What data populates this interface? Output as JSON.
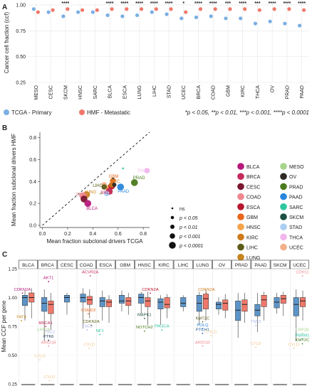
{
  "panels": {
    "a": "A",
    "b": "B",
    "c": "C"
  },
  "colors": {
    "primary": "#7aafe3",
    "metastatic": "#f0786a",
    "grid": "#e6e6e6",
    "axis": "#333333",
    "text": "#222222"
  },
  "chart_data": [
    {
      "type": "scatter",
      "ylabel": "Cancer cell fraction (ccf)",
      "xlabel": "",
      "ylim": [
        0.25,
        1.0
      ],
      "yticks": [
        1.0,
        0.75,
        0.5,
        0.25
      ],
      "ytick_labels": [
        "1.00",
        "0.75",
        "0.50",
        "0.25"
      ],
      "categories": [
        "MESO",
        "CESC",
        "SKCM",
        "HNSC",
        "SARC",
        "BLCA",
        "ESCA",
        "LUNG",
        "LIHC",
        "STAD",
        "UCEC",
        "BRCA",
        "COAD",
        "GBM",
        "KIRC",
        "THCA",
        "OV",
        "PRAD",
        "PAAD"
      ],
      "significance": [
        "",
        "",
        "****",
        "",
        "",
        "****",
        "****",
        "****",
        "****",
        "****",
        "*",
        "****",
        "****",
        "***",
        "****",
        "***",
        "****",
        "****",
        "****"
      ],
      "series": [
        {
          "name": "TCGA - Primary",
          "color": "#7aafe3",
          "values": [
            0.96,
            0.93,
            0.89,
            0.93,
            0.93,
            0.9,
            0.89,
            0.9,
            0.93,
            0.91,
            0.87,
            0.88,
            0.89,
            0.87,
            0.87,
            0.82,
            0.84,
            0.82,
            0.8
          ]
        },
        {
          "name": "HMF - Metastatic",
          "color": "#f0786a",
          "values": [
            0.93,
            0.95,
            0.96,
            0.95,
            0.95,
            0.96,
            0.96,
            0.96,
            0.96,
            0.96,
            0.93,
            0.96,
            0.96,
            0.96,
            0.96,
            0.95,
            0.96,
            0.96,
            0.95
          ]
        }
      ],
      "legend": [
        "TCGA - Primary",
        "HMF - Metastatic"
      ],
      "legend_placement": "bottom",
      "footnote": "*p < 0.05, **p < 0.01, ***p < 0.001, ****p < 0.0001"
    },
    {
      "type": "scatter",
      "xlabel": "Mean fraction subclonal drivers TCGA",
      "ylabel": "Mean fraction subclonal drivers HMF",
      "xlim": [
        -0.02,
        0.85
      ],
      "ylim": [
        -0.02,
        0.85
      ],
      "xticks": [
        0.0,
        0.2,
        0.4,
        0.6,
        0.8
      ],
      "xtick_labels": [
        "0.0",
        "0.2",
        "0.4",
        "0.6",
        "0.8"
      ],
      "yticks": [
        0.0,
        0.2,
        0.4,
        0.6,
        0.8
      ],
      "ytick_labels": [
        "0.0",
        "0.2",
        "0.4",
        "0.6",
        "0.8"
      ],
      "points": [
        {
          "label": "BLCA",
          "x": 0.36,
          "y": 0.2,
          "color": "#b5177a",
          "size": "p < 0.0001",
          "show_label": true
        },
        {
          "label": "BRCA",
          "x": 0.53,
          "y": 0.31,
          "color": "#c42a5a",
          "size": "p < 0.0001",
          "show_label": true
        },
        {
          "label": "CESC",
          "x": 0.33,
          "y": 0.24,
          "color": "#7b1730",
          "size": "p < 0.0001",
          "show_label": false
        },
        {
          "label": "COAD",
          "x": 0.32,
          "y": 0.27,
          "color": "#f0868e",
          "size": "p < 0.0001",
          "show_label": true
        },
        {
          "label": "ESCA",
          "x": 0.55,
          "y": 0.36,
          "color": "#b8162e",
          "size": "p < 0.0001",
          "show_label": false
        },
        {
          "label": "GBM",
          "x": 0.56,
          "y": 0.41,
          "color": "#e8671a",
          "size": "p < 0.001",
          "show_label": true
        },
        {
          "label": "HNSC",
          "x": 0.53,
          "y": 0.34,
          "color": "#f4a34a",
          "size": "p < 0.0001",
          "show_label": false
        },
        {
          "label": "KIRC",
          "x": 0.55,
          "y": 0.37,
          "color": "#cd7a1c",
          "size": "p < 0.001",
          "show_label": true
        },
        {
          "label": "LIHC",
          "x": 0.49,
          "y": 0.35,
          "color": "#5e5c1a",
          "size": "p < 0.001",
          "show_label": true
        },
        {
          "label": "LUNG",
          "x": 0.35,
          "y": 0.28,
          "color": "#c8841e",
          "size": "p < 0.0001",
          "show_label": true
        },
        {
          "label": "MESO",
          "x": 0.46,
          "y": 0.29,
          "color": "#a6d48a",
          "size": "ns",
          "show_label": false
        },
        {
          "label": "OV",
          "x": 0.57,
          "y": 0.37,
          "color": "#2e2a24",
          "size": "p < 0.01",
          "show_label": false
        },
        {
          "label": "PRAD",
          "x": 0.73,
          "y": 0.39,
          "color": "#4a7a1c",
          "size": "p < 0.0001",
          "show_label": true
        },
        {
          "label": "PAAD",
          "x": 0.62,
          "y": 0.35,
          "color": "#2a86dc",
          "size": "p < 0.0001",
          "show_label": true
        },
        {
          "label": "SARC",
          "x": 0.64,
          "y": 0.52,
          "color": "#2ec6a0",
          "size": "ns",
          "show_label": false
        },
        {
          "label": "SKCM",
          "x": 0.56,
          "y": 0.43,
          "color": "#1c5040",
          "size": "ns",
          "show_label": false
        },
        {
          "label": "STAD",
          "x": 0.51,
          "y": 0.29,
          "color": "#aacdf2",
          "size": "p < 0.001",
          "show_label": false
        },
        {
          "label": "THCA",
          "x": 0.83,
          "y": 0.5,
          "color": "#f1b6ec",
          "size": "p < 0.001",
          "show_label": true
        },
        {
          "label": "UCEC",
          "x": 0.49,
          "y": 0.37,
          "color": "#f2b08a",
          "size": "p < 0.001",
          "show_label": false
        }
      ],
      "legend_cancer": [
        {
          "label": "BLCA",
          "color": "#b5177a"
        },
        {
          "label": "MESO",
          "color": "#a6d48a"
        },
        {
          "label": "BRCA",
          "color": "#c42a5a"
        },
        {
          "label": "OV",
          "color": "#2e2a24"
        },
        {
          "label": "CESC",
          "color": "#7b1730"
        },
        {
          "label": "PRAD",
          "color": "#4a7a1c"
        },
        {
          "label": "COAD",
          "color": "#f0868e"
        },
        {
          "label": "PAAD",
          "color": "#2a86dc"
        },
        {
          "label": "ESCA",
          "color": "#b8162e"
        },
        {
          "label": "SARC",
          "color": "#2ec6a0"
        },
        {
          "label": "GBM",
          "color": "#e8671a"
        },
        {
          "label": "SKCM",
          "color": "#1c5040"
        },
        {
          "label": "HNSC",
          "color": "#f4a34a"
        },
        {
          "label": "STAD",
          "color": "#aacdf2"
        },
        {
          "label": "KIRC",
          "color": "#cd7a1c"
        },
        {
          "label": "THCA",
          "color": "#f1b6ec"
        },
        {
          "label": "LIHC",
          "color": "#5e5c1a"
        },
        {
          "label": "UCEC",
          "color": "#f2b08a"
        },
        {
          "label": "LUNG",
          "color": "#c8841e"
        }
      ],
      "legend_size": [
        "ns",
        "p < 0.05",
        "p < 0.01",
        "p < 0.001",
        "p < 0.0001"
      ],
      "reference_line": "y = x (dashed)"
    },
    {
      "type": "box",
      "ylabel": "Mean CCF per gene",
      "ylim": [
        0.25,
        1.25
      ],
      "yticks": [
        0.25,
        0.5,
        0.75,
        1.0,
        1.25
      ],
      "ytick_labels": [
        "0.25",
        "0.50",
        "0.75",
        "1.00",
        "1.25"
      ],
      "facets": [
        "BLCA",
        "BRCA",
        "CESC",
        "COAD",
        "ESCA",
        "GBM",
        "HNSC",
        "KIRC",
        "LIHC",
        "LUNG",
        "OV",
        "PRAD",
        "PAAD",
        "SKCM",
        "UCEC"
      ],
      "boxes": [
        {
          "facet": "BLCA",
          "series": "TCGA - Primary",
          "min": 0.8,
          "q1": 0.93,
          "median": 1.0,
          "q3": 1.02,
          "max": 1.06
        },
        {
          "facet": "BLCA",
          "series": "HMF - Metastatic",
          "min": 0.82,
          "q1": 0.96,
          "median": 1.0,
          "q3": 1.04,
          "max": 1.08
        },
        {
          "facet": "BRCA",
          "series": "TCGA - Primary",
          "min": 0.62,
          "q1": 0.88,
          "median": 0.95,
          "q3": 1.0,
          "max": 1.07
        },
        {
          "facet": "BRCA",
          "series": "HMF - Metastatic",
          "min": 0.72,
          "q1": 0.86,
          "median": 0.94,
          "q3": 0.97,
          "max": 1.04
        },
        {
          "facet": "CESC",
          "series": "TCGA - Primary",
          "min": 0.85,
          "q1": 0.96,
          "median": 1.0,
          "q3": 1.02,
          "max": 1.04
        },
        {
          "facet": "COAD",
          "series": "TCGA - Primary",
          "min": 0.73,
          "q1": 0.96,
          "median": 1.0,
          "q3": 1.03,
          "max": 1.08
        },
        {
          "facet": "COAD",
          "series": "HMF - Metastatic",
          "min": 0.82,
          "q1": 0.94,
          "median": 0.98,
          "q3": 1.01,
          "max": 1.07
        },
        {
          "facet": "ESCA",
          "series": "TCGA - Primary",
          "min": 0.8,
          "q1": 0.92,
          "median": 0.97,
          "q3": 1.0,
          "max": 1.06
        },
        {
          "facet": "ESCA",
          "series": "HMF - Metastatic",
          "min": 0.78,
          "q1": 0.92,
          "median": 0.96,
          "q3": 0.98,
          "max": 1.02
        },
        {
          "facet": "GBM",
          "series": "TCGA - Primary",
          "min": 0.88,
          "q1": 0.95,
          "median": 0.97,
          "q3": 1.02,
          "max": 1.06
        },
        {
          "facet": "GBM",
          "series": "HMF - Metastatic",
          "min": 0.85,
          "q1": 0.93,
          "median": 0.97,
          "q3": 1.0,
          "max": 1.04
        },
        {
          "facet": "HNSC",
          "series": "TCGA - Primary",
          "min": 0.86,
          "q1": 0.95,
          "median": 1.0,
          "q3": 1.03,
          "max": 1.05
        },
        {
          "facet": "HNSC",
          "series": "HMF - Metastatic",
          "min": 0.76,
          "q1": 0.92,
          "median": 0.97,
          "q3": 1.0,
          "max": 1.05
        },
        {
          "facet": "KIRC",
          "series": "TCGA - Primary",
          "min": 0.76,
          "q1": 0.9,
          "median": 0.96,
          "q3": 0.99,
          "max": 1.02
        },
        {
          "facet": "KIRC",
          "series": "HMF - Metastatic",
          "min": 0.82,
          "q1": 0.91,
          "median": 0.94,
          "q3": 1.0,
          "max": 1.03
        },
        {
          "facet": "LIHC",
          "series": "TCGA - Primary",
          "min": 0.88,
          "q1": 0.92,
          "median": 0.95,
          "q3": 1.0,
          "max": 1.02
        },
        {
          "facet": "LUNG",
          "series": "TCGA - Primary",
          "min": 0.76,
          "q1": 0.88,
          "median": 0.95,
          "q3": 1.02,
          "max": 1.05
        },
        {
          "facet": "LUNG",
          "series": "HMF - Metastatic",
          "min": 0.8,
          "q1": 0.9,
          "median": 0.99,
          "q3": 1.03,
          "max": 1.07
        },
        {
          "facet": "OV",
          "series": "TCGA - Primary",
          "min": 0.85,
          "q1": 0.9,
          "median": 0.94,
          "q3": 0.96,
          "max": 1.0
        },
        {
          "facet": "OV",
          "series": "HMF - Metastatic",
          "min": 0.82,
          "q1": 0.89,
          "median": 0.95,
          "q3": 0.98,
          "max": 1.03
        },
        {
          "facet": "PRAD",
          "series": "TCGA - Primary",
          "min": 0.65,
          "q1": 0.8,
          "median": 0.89,
          "q3": 0.97,
          "max": 1.04
        },
        {
          "facet": "PRAD",
          "series": "HMF - Metastatic",
          "min": 0.78,
          "q1": 0.88,
          "median": 0.94,
          "q3": 0.98,
          "max": 1.04
        },
        {
          "facet": "PAAD",
          "series": "TCGA - Primary",
          "min": 0.7,
          "q1": 0.84,
          "median": 0.89,
          "q3": 0.94,
          "max": 1.04
        },
        {
          "facet": "PAAD",
          "series": "HMF - Metastatic",
          "min": 0.8,
          "q1": 0.92,
          "median": 0.98,
          "q3": 1.02,
          "max": 1.05
        },
        {
          "facet": "SKCM",
          "series": "TCGA - Primary",
          "min": 0.86,
          "q1": 0.91,
          "median": 0.96,
          "q3": 1.0,
          "max": 1.04
        },
        {
          "facet": "SKCM",
          "series": "HMF - Metastatic",
          "min": 0.84,
          "q1": 0.95,
          "median": 0.99,
          "q3": 1.02,
          "max": 1.05
        },
        {
          "facet": "UCEC",
          "series": "TCGA - Primary",
          "min": 0.62,
          "q1": 0.84,
          "median": 0.94,
          "q3": 1.0,
          "max": 1.07
        },
        {
          "facet": "UCEC",
          "series": "HMF - Metastatic",
          "min": 0.8,
          "q1": 0.92,
          "median": 0.97,
          "q3": 1.0,
          "max": 1.06
        }
      ],
      "annotations": [
        {
          "facet": "BLCA",
          "pos": 0.2,
          "y": 1.06,
          "text": "CDKN2A",
          "color": "#b5177a"
        },
        {
          "facet": "BLCA",
          "pos": 0.15,
          "y": 0.82,
          "text": "FAT4",
          "color": "#c8841e"
        },
        {
          "facet": "BRCA",
          "pos": 0.55,
          "y": 1.16,
          "text": "AKT1",
          "color": "#b5177a"
        },
        {
          "facet": "BRCA",
          "pos": 0.4,
          "y": 0.77,
          "text": "BRCA1",
          "color": "#c42a5a"
        },
        {
          "facet": "BRCA",
          "pos": 0.3,
          "y": 0.71,
          "text": "LRP1B",
          "color": "#a6d48a"
        },
        {
          "facet": "BRCA",
          "pos": 0.6,
          "y": 0.69,
          "text": "TSC2",
          "color": "#aab0e8"
        },
        {
          "facet": "BRCA",
          "pos": 0.55,
          "y": 0.65,
          "text": "PTK6",
          "color": "#1c3a5a"
        },
        {
          "facet": "BRCA",
          "pos": 0.55,
          "y": 0.6,
          "text": "ARID1B",
          "color": "#f0868e"
        },
        {
          "facet": "BRCA",
          "pos": 0.1,
          "y": 0.48,
          "text": "CYLD",
          "color": "#f2c58a"
        },
        {
          "facet": "BRCA",
          "pos": 0.6,
          "y": 0.3,
          "text": "CYLD",
          "color": "#f2c58a"
        },
        {
          "facet": "COAD",
          "pos": 0.7,
          "y": 1.21,
          "text": "ACVR2A",
          "color": "#c42a5a"
        },
        {
          "facet": "COAD",
          "pos": 0.6,
          "y": 0.88,
          "text": "CSMD3",
          "color": "#e8671a"
        },
        {
          "facet": "COAD",
          "pos": 0.75,
          "y": 0.78,
          "text": "CDKN2A",
          "color": "#5e5c1a"
        },
        {
          "facet": "COAD",
          "pos": 0.55,
          "y": 0.74,
          "text": "TSC2",
          "color": "#aab0e8"
        },
        {
          "facet": "COAD",
          "pos": 0.65,
          "y": 0.58,
          "text": "CYLD",
          "color": "#f2c58a"
        },
        {
          "facet": "ESCA",
          "pos": 0.2,
          "y": 0.7,
          "text": "NF1",
          "color": "#2ec6a0"
        },
        {
          "facet": "HNSC",
          "pos": 0.8,
          "y": 1.06,
          "text": "CDKN2A",
          "color": "#b8162e"
        },
        {
          "facet": "HNSC",
          "pos": 0.5,
          "y": 0.84,
          "text": "MAPK1",
          "color": "#1c5040"
        },
        {
          "facet": "HNSC",
          "pos": 0.5,
          "y": 0.73,
          "text": "NOTCH2",
          "color": "#4a7a1c"
        },
        {
          "facet": "KIRC",
          "pos": 0.4,
          "y": 0.74,
          "text": "PIK3CA",
          "color": "#2ec6a0"
        },
        {
          "facet": "LUNG",
          "pos": 0.7,
          "y": 1.06,
          "text": "CDKN2A",
          "color": "#cd7a1c"
        },
        {
          "facet": "LUNG",
          "pos": 0.5,
          "y": 0.81,
          "text": "KMT2C",
          "color": "#5e5c1a"
        },
        {
          "facet": "LUNG",
          "pos": 0.5,
          "y": 0.75,
          "text": "POLQ",
          "color": "#2a86dc"
        },
        {
          "facet": "LUNG",
          "pos": 0.5,
          "y": 0.71,
          "text": "PTCH1",
          "color": "#1c5090"
        },
        {
          "facet": "LUNG",
          "pos": 0.95,
          "y": 0.69,
          "text": "CYLD",
          "color": "#f2c58a"
        },
        {
          "facet": "LUNG",
          "pos": 0.5,
          "y": 0.6,
          "text": "ARID1B",
          "color": "#f0868e"
        },
        {
          "facet": "PAAD",
          "pos": 0.25,
          "y": 0.78,
          "text": "TSC2",
          "color": "#aab0e8"
        },
        {
          "facet": "PAAD",
          "pos": 0.25,
          "y": 0.59,
          "text": "CYLD",
          "color": "#f2c58a"
        },
        {
          "facet": "UCEC",
          "pos": 0.65,
          "y": 1.21,
          "text": "CDH11",
          "color": "#f0868e"
        },
        {
          "facet": "UCEC",
          "pos": 0.65,
          "y": 0.71,
          "text": "LRP1B",
          "color": "#a6d48a"
        },
        {
          "facet": "UCEC",
          "pos": 0.65,
          "y": 0.66,
          "text": "PBRM1",
          "color": "#2ec6a0"
        },
        {
          "facet": "UCEC",
          "pos": 0.65,
          "y": 0.62,
          "text": "KMT2C",
          "color": "#4a7a1c"
        },
        {
          "facet": "UCEC",
          "pos": 0.2,
          "y": 0.58,
          "text": "CYLD",
          "color": "#f2c58a"
        }
      ]
    }
  ]
}
